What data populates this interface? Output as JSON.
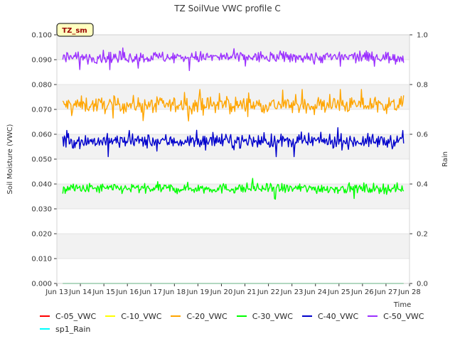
{
  "chart_data": {
    "type": "line",
    "title": "TZ SoilVue VWC profile C",
    "xlabel": "Time",
    "ylabel": "Soil Moisture (VWC)",
    "y2label": "Rain",
    "annotation": "TZ_sm",
    "x_ticks": [
      "Jun 13",
      "Jun 14",
      "Jun 15",
      "Jun 16",
      "Jun 17",
      "Jun 18",
      "Jun 19",
      "Jun 20",
      "Jun 21",
      "Jun 22",
      "Jun 23",
      "Jun 24",
      "Jun 25",
      "Jun 26",
      "Jun 27",
      "Jun 28"
    ],
    "y_ticks": [
      "0.000",
      "0.010",
      "0.020",
      "0.030",
      "0.040",
      "0.050",
      "0.060",
      "0.070",
      "0.080",
      "0.090",
      "0.100"
    ],
    "y2_ticks": [
      "0.0",
      "0.2",
      "0.4",
      "0.6",
      "0.8",
      "1.0"
    ],
    "xlim": [
      "2024-06-13",
      "2024-06-28"
    ],
    "ylim": [
      0.0,
      0.1
    ],
    "y2lim": [
      0.0,
      1.0
    ],
    "x_start": "2024-06-13T06:00",
    "x_end": "2024-06-27T18:00",
    "grid": true,
    "legend_position": "bottom",
    "series": [
      {
        "name": "C-05_VWC",
        "color": "#ff0000",
        "mean": 0.0,
        "noise": 0.0,
        "values_note": "",
        "axis": "left"
      },
      {
        "name": "C-10_VWC",
        "color": "#ffff00",
        "mean": 0.0,
        "noise": 0.0,
        "axis": "left"
      },
      {
        "name": "C-20_VWC",
        "color": "#ffa500",
        "mean": 0.0718,
        "noise": 0.0022,
        "min": 0.062,
        "max": 0.078,
        "axis": "left"
      },
      {
        "name": "C-30_VWC",
        "color": "#00ff00",
        "mean": 0.0382,
        "noise": 0.0014,
        "min": 0.031,
        "max": 0.044,
        "axis": "left"
      },
      {
        "name": "C-40_VWC",
        "color": "#0000cc",
        "mean": 0.0572,
        "noise": 0.0019,
        "min": 0.051,
        "max": 0.065,
        "axis": "left"
      },
      {
        "name": "C-50_VWC",
        "color": "#9b30ff",
        "mean": 0.091,
        "noise": 0.0016,
        "min": 0.08,
        "max": 0.096,
        "axis": "left"
      },
      {
        "name": "sp1_Rain",
        "color": "#00ffff",
        "mean": 0.0,
        "noise": 0.0,
        "axis": "right"
      }
    ]
  },
  "legend": {
    "row1": [
      "C-05_VWC",
      "C-10_VWC",
      "C-20_VWC",
      "C-30_VWC",
      "C-40_VWC",
      "C-50_VWC"
    ],
    "row2": [
      "sp1_Rain"
    ],
    "colors": {
      "C-05_VWC": "#ff0000",
      "C-10_VWC": "#ffff00",
      "C-20_VWC": "#ffa500",
      "C-30_VWC": "#00ff00",
      "C-40_VWC": "#0000cc",
      "C-50_VWC": "#9b30ff",
      "sp1_Rain": "#00ffff"
    }
  }
}
